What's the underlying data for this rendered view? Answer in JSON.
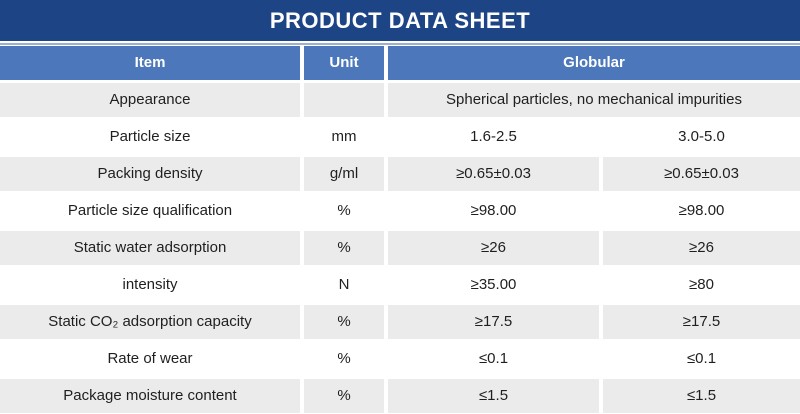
{
  "title": "PRODUCT DATA SHEET",
  "colors": {
    "title_bar": "#1d4586",
    "header_row": "#4d77bb",
    "row_alt_gray": "#ebebeb",
    "row_white": "#ffffff",
    "divider_line": "#9db0cf",
    "text": "#1f1f1f",
    "header_text": "#ffffff"
  },
  "table": {
    "headers": {
      "item": "Item",
      "unit": "Unit",
      "globular": "Globular"
    },
    "rows": [
      {
        "item": "Appearance",
        "unit": "",
        "value": "Spherical particles, no mechanical impurities"
      },
      {
        "item": "Particle size",
        "unit": "mm",
        "v1": "1.6-2.5",
        "v2": "3.0-5.0"
      },
      {
        "item": "Packing density",
        "unit": "g/ml",
        "v1": "≥0.65±0.03",
        "v2": "≥0.65±0.03"
      },
      {
        "item": "Particle size qualification",
        "unit": "%",
        "v1": "≥98.00",
        "v2": "≥98.00"
      },
      {
        "item": "Static water adsorption",
        "unit": "%",
        "v1": "≥26",
        "v2": "≥26"
      },
      {
        "item": "intensity",
        "unit": "N",
        "v1": "≥35.00",
        "v2": "≥80"
      },
      {
        "item": "Static CO₂ adsorption capacity",
        "unit": "%",
        "v1": "≥17.5",
        "v2": "≥17.5"
      },
      {
        "item": "Rate of wear",
        "unit": "%",
        "v1": "≤0.1",
        "v2": "≤0.1"
      },
      {
        "item": "Package moisture content",
        "unit": "%",
        "v1": "≤1.5",
        "v2": "≤1.5"
      }
    ]
  }
}
